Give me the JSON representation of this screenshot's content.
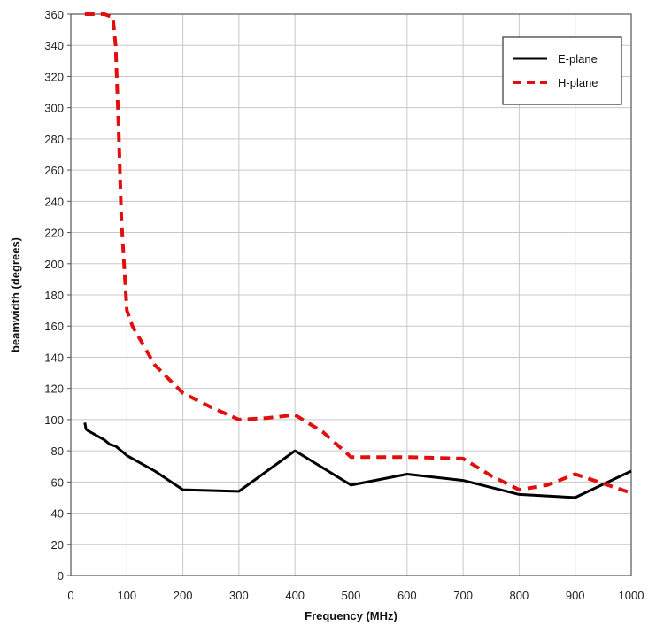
{
  "chart_data": {
    "type": "line",
    "title": "",
    "xlabel": "Frequency (MHz)",
    "ylabel": "beamwidth (degrees)",
    "xlim": [
      0,
      1000
    ],
    "ylim": [
      0,
      360
    ],
    "xticks": [
      0,
      100,
      200,
      300,
      400,
      500,
      600,
      700,
      800,
      900,
      1000
    ],
    "yticks": [
      0,
      20,
      40,
      60,
      80,
      100,
      120,
      140,
      160,
      180,
      200,
      220,
      240,
      260,
      280,
      300,
      320,
      340,
      360
    ],
    "grid": true,
    "legend_position": "top-right",
    "series": [
      {
        "name": "E-plane",
        "color": "#000000",
        "style": "solid",
        "x": [
          25,
          27,
          30,
          40,
          50,
          60,
          70,
          80,
          90,
          100,
          150,
          200,
          300,
          400,
          500,
          600,
          700,
          800,
          900,
          1000
        ],
        "y": [
          98,
          94,
          93,
          91,
          89,
          87,
          84,
          83,
          80,
          77,
          67,
          55,
          54,
          80,
          58,
          65,
          61,
          52,
          50,
          67
        ]
      },
      {
        "name": "H-plane",
        "color": "#e01010",
        "style": "dashed",
        "x": [
          25,
          40,
          60,
          75,
          80,
          85,
          90,
          95,
          100,
          110,
          150,
          200,
          250,
          300,
          350,
          400,
          450,
          500,
          550,
          600,
          700,
          750,
          800,
          850,
          900,
          1000
        ],
        "y": [
          360,
          360,
          360,
          358,
          340,
          290,
          230,
          200,
          170,
          160,
          135,
          117,
          108,
          100,
          101,
          103,
          92,
          76,
          76,
          76,
          75,
          64,
          55,
          58,
          65,
          53
        ]
      }
    ]
  }
}
